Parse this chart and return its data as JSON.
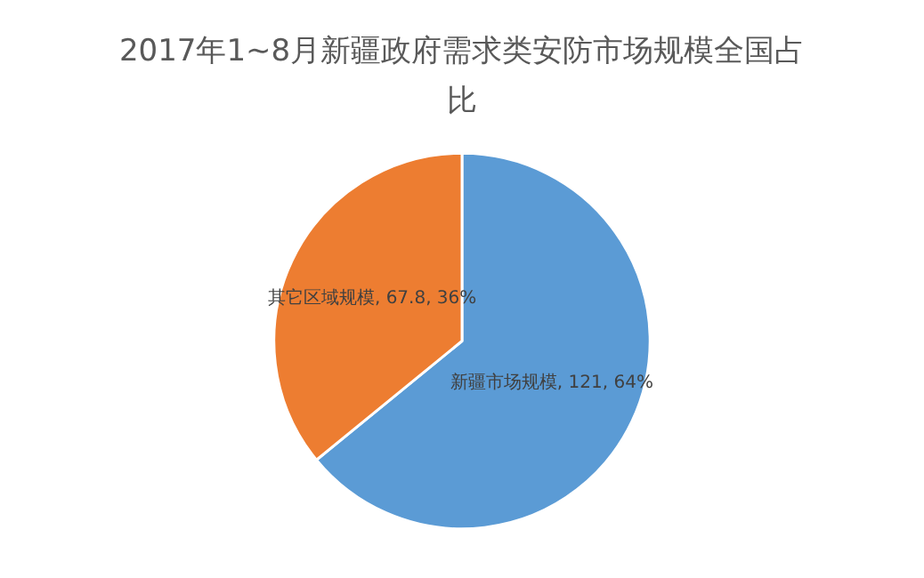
{
  "chart_data": {
    "type": "pie",
    "title": "2017年1~8月新疆政府需求类安防市场规模全国占比",
    "categories": [
      "新疆市场规模",
      "其它区域规模"
    ],
    "values": [
      121,
      67.8
    ],
    "colors": [
      "#5b9bd5",
      "#ed7d31"
    ],
    "value_labels": [
      "121, 64%",
      "67.8, 36%"
    ],
    "legend": false
  }
}
